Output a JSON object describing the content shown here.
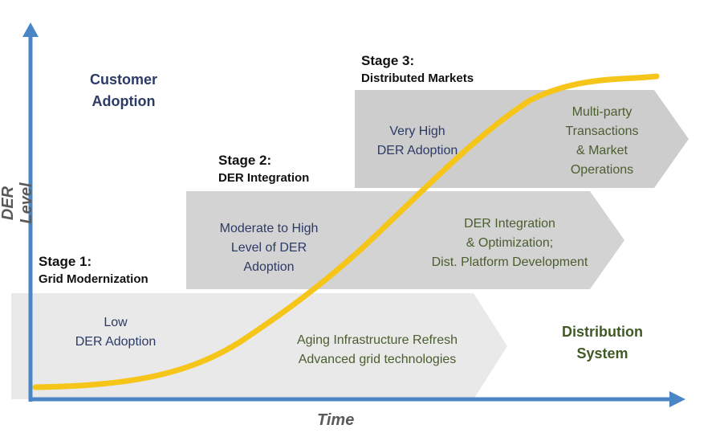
{
  "axes": {
    "y_label": "DER Level",
    "x_label": "Time"
  },
  "corner_labels": {
    "top_left": [
      "Customer",
      "Adoption"
    ],
    "bottom_right": [
      "Distribution",
      "System"
    ]
  },
  "stages": [
    {
      "number": "Stage 1:",
      "name": "Grid Modernization",
      "left_text": [
        "Low",
        "DER Adoption"
      ],
      "right_text": [
        "Aging Infrastructure Refresh",
        "Advanced grid technologies"
      ]
    },
    {
      "number": "Stage 2:",
      "name": "DER Integration",
      "left_text": [
        "Moderate to High",
        "Level of DER",
        "Adoption"
      ],
      "right_text": [
        "DER Integration",
        "& Optimization;",
        "Dist. Platform Development"
      ]
    },
    {
      "number": "Stage 3:",
      "name": "Distributed Markets",
      "left_text": [
        "Very High",
        "DER Adoption"
      ],
      "right_text": [
        "Multi-party",
        "Transactions",
        "& Market",
        "Operations"
      ]
    }
  ],
  "colors": {
    "axis": "#4a86c5",
    "curve": "#f6c51a",
    "stage1_arrow": "#e9e9e9",
    "stage2_arrow": "#d3d3d3",
    "stage3_arrow": "#cdcdcd",
    "left_text": "#2c3a66",
    "right_text": "#4b5e2f"
  }
}
